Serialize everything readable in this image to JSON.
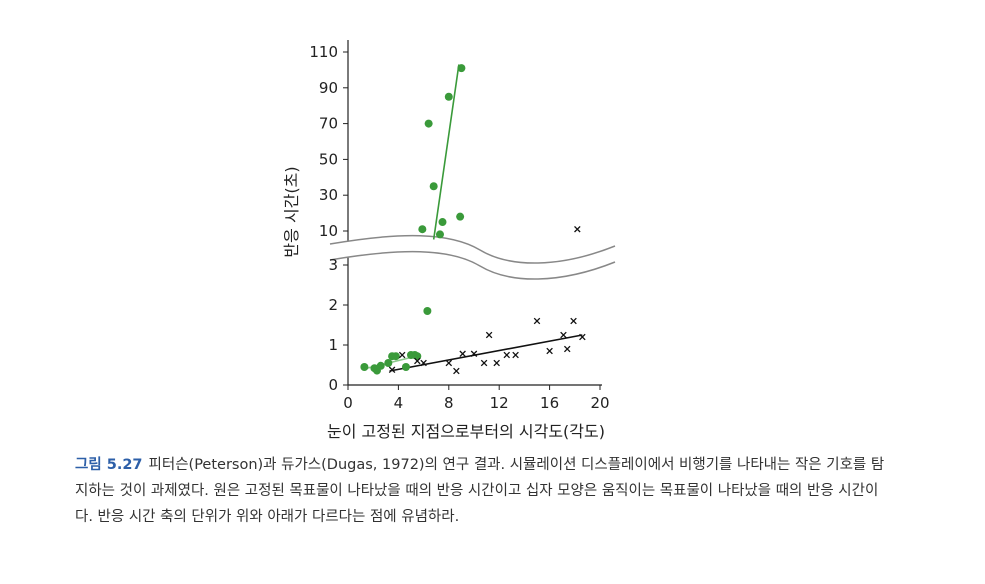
{
  "chart_data": {
    "type": "scatter",
    "xlabel": "눈이 고정된 지점으로부터의 시각도(각도)",
    "ylabel": "반응 시간(초)",
    "x_ticks": [
      0,
      4,
      8,
      12,
      16,
      20
    ],
    "xlim": [
      0,
      20
    ],
    "y_ticks_lower": [
      0,
      1,
      2,
      3
    ],
    "y_ticks_upper": [
      10,
      30,
      50,
      70,
      90,
      110
    ],
    "axis_break": "between 3 and 10",
    "series": [
      {
        "marker": "circle",
        "color": "#3a9a3a",
        "points": [
          [
            1.3,
            0.45
          ],
          [
            2.1,
            0.42
          ],
          [
            2.3,
            0.36
          ],
          [
            2.6,
            0.48
          ],
          [
            3.2,
            0.55
          ],
          [
            3.5,
            0.72
          ],
          [
            3.8,
            0.72
          ],
          [
            4.6,
            0.45
          ],
          [
            5.0,
            0.75
          ],
          [
            5.3,
            0.75
          ],
          [
            5.5,
            0.72
          ],
          [
            6.3,
            1.85
          ],
          [
            5.9,
            11
          ],
          [
            7.3,
            8
          ],
          [
            7.5,
            15
          ],
          [
            6.8,
            35
          ],
          [
            8.9,
            18
          ],
          [
            8.0,
            85
          ],
          [
            9.0,
            101
          ],
          [
            6.4,
            70
          ]
        ],
        "fit_lower": [
          [
            1.5,
            0.42
          ],
          [
            5.8,
            0.75
          ]
        ],
        "fit_upper": [
          [
            6.8,
            5
          ],
          [
            8.8,
            103
          ]
        ]
      },
      {
        "marker": "x",
        "color": "#111111",
        "points": [
          [
            3.5,
            0.38
          ],
          [
            4.3,
            0.75
          ],
          [
            5.5,
            0.6
          ],
          [
            6.0,
            0.55
          ],
          [
            8.0,
            0.55
          ],
          [
            8.6,
            0.35
          ],
          [
            9.1,
            0.78
          ],
          [
            10.0,
            0.78
          ],
          [
            10.8,
            0.55
          ],
          [
            11.2,
            1.25
          ],
          [
            11.8,
            0.55
          ],
          [
            12.6,
            0.75
          ],
          [
            13.3,
            0.75
          ],
          [
            15.0,
            1.6
          ],
          [
            16.0,
            0.85
          ],
          [
            17.1,
            1.25
          ],
          [
            17.4,
            0.9
          ],
          [
            17.9,
            1.6
          ],
          [
            18.6,
            1.2
          ],
          [
            18.2,
            11
          ]
        ],
        "fit": [
          [
            3.3,
            0.35
          ],
          [
            18.6,
            1.25
          ]
        ]
      }
    ]
  },
  "caption": {
    "label": "그림 5.27",
    "text": "피터슨(Peterson)과 듀가스(Dugas, 1972)의 연구 결과. 시뮬레이션 디스플레이에서 비행기를 나타내는 작은 기호를 탐지하는 것이 과제였다. 원은 고정된 목표물이 나타났을 때의 반응 시간이고 십자 모양은 움직이는 목표물이 나타났을 때의 반응 시간이다. 반응 시간 축의 단위가 위와 아래가 다르다는 점에 유념하라."
  }
}
